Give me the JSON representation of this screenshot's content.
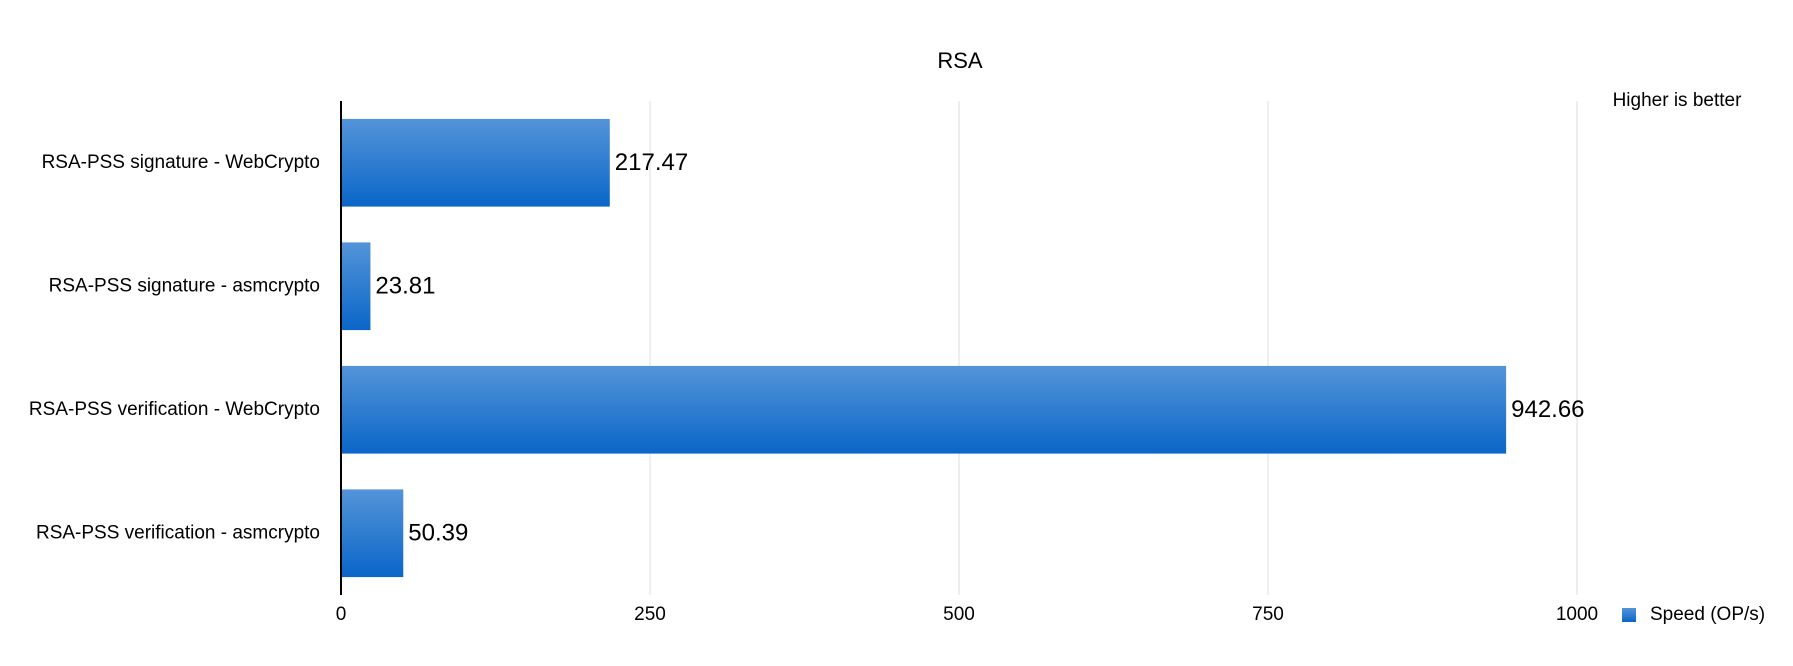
{
  "chart_data": {
    "type": "bar",
    "orientation": "horizontal",
    "title": "RSA",
    "annotation": "Higher is better",
    "categories": [
      "RSA-PSS signature - WebCrypto",
      "RSA-PSS signature - asmcrypto",
      "RSA-PSS verification - WebCrypto",
      "RSA-PSS verification - asmcrypto"
    ],
    "series": [
      {
        "name": "Speed (OP/s)",
        "color": "#0a66c8",
        "values": [
          217.47,
          23.81,
          942.66,
          50.39
        ]
      }
    ],
    "xlim": [
      0,
      1000
    ],
    "xticks": [
      0,
      250,
      500,
      750,
      1000
    ],
    "grid": true,
    "legend": "right"
  }
}
